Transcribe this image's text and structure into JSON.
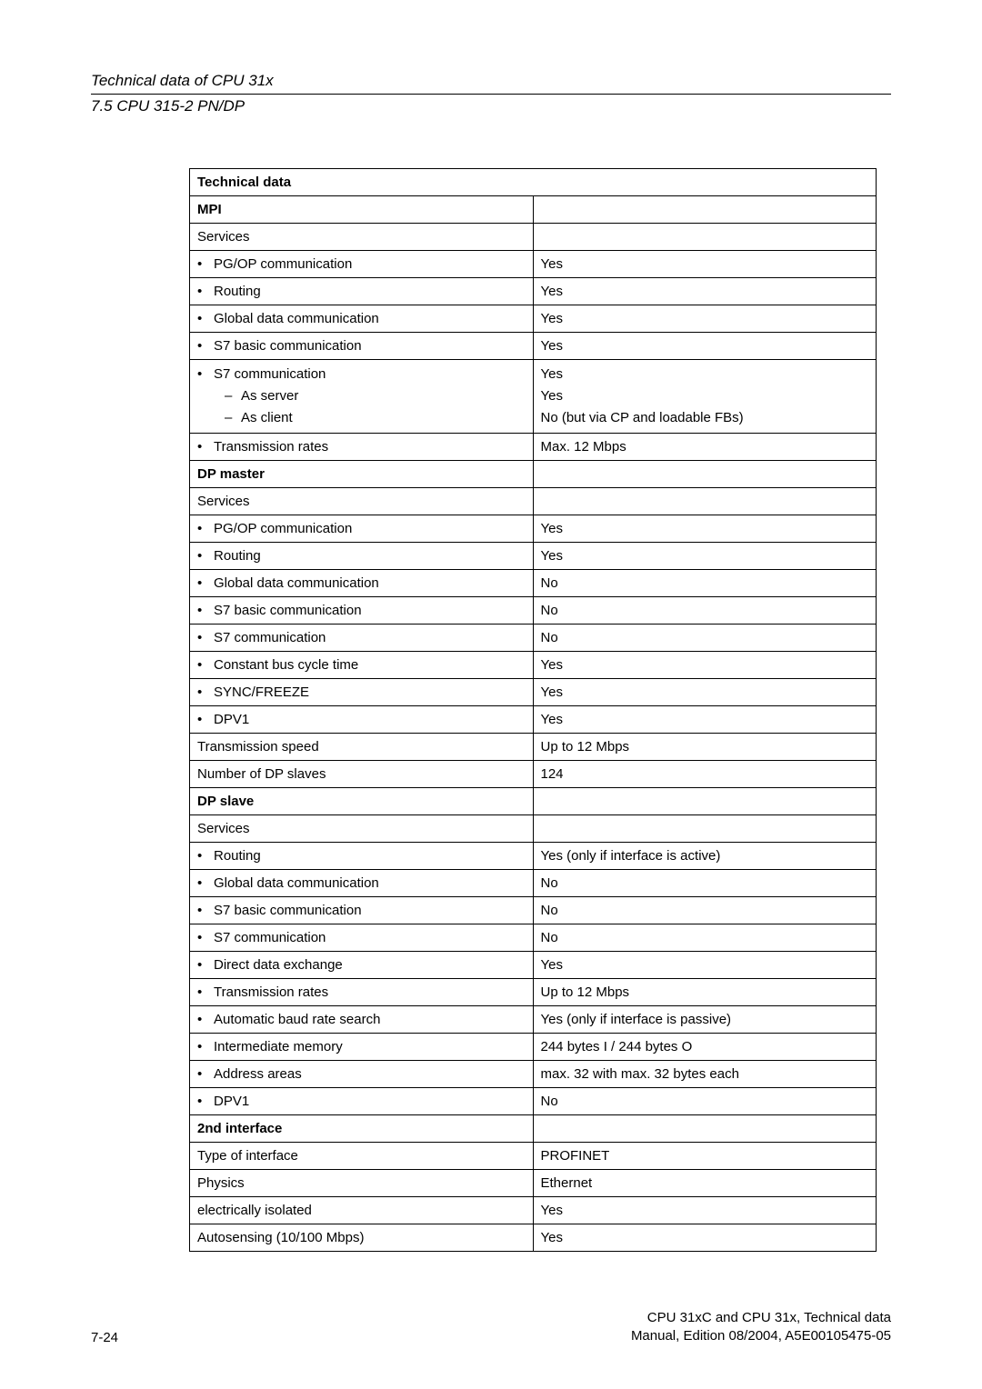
{
  "header": {
    "line1": "Technical data of CPU 31x",
    "line2": "7.5 CPU 315-2 PN/DP"
  },
  "table": {
    "title": "Technical data",
    "sections": {
      "mpi": {
        "label": "MPI"
      },
      "dp_master": {
        "label": "DP master"
      },
      "dp_slave": {
        "label": "DP slave"
      },
      "second_if": {
        "label": "2nd interface"
      }
    },
    "rows": {
      "mpi_services": {
        "l": "Services",
        "r": ""
      },
      "mpi_pgop": {
        "l": "PG/OP communication",
        "r": "Yes"
      },
      "mpi_routing": {
        "l": "Routing",
        "r": "Yes"
      },
      "mpi_gdc": {
        "l": "Global data communication",
        "r": "Yes"
      },
      "mpi_s7basic": {
        "l": "S7 basic communication",
        "r": "Yes"
      },
      "mpi_s7comm": {
        "l": "S7 communication",
        "r1": "Yes",
        "sub1l": "As server",
        "r2": "Yes",
        "sub2l": "As client",
        "r3": "No (but via CP and loadable FBs)"
      },
      "mpi_trans": {
        "l": "Transmission rates",
        "r": "Max. 12 Mbps"
      },
      "dpm_services": {
        "l": "Services",
        "r": ""
      },
      "dpm_pgop": {
        "l": "PG/OP communication",
        "r": "Yes"
      },
      "dpm_routing": {
        "l": "Routing",
        "r": "Yes"
      },
      "dpm_gdc": {
        "l": "Global data communication",
        "r": "No"
      },
      "dpm_s7basic": {
        "l": "S7 basic communication",
        "r": "No"
      },
      "dpm_s7comm": {
        "l": "S7 communication",
        "r": "No"
      },
      "dpm_const": {
        "l": "Constant bus cycle time",
        "r": "Yes"
      },
      "dpm_sync": {
        "l": "SYNC/FREEZE",
        "r": "Yes"
      },
      "dpm_dpv1": {
        "l": "DPV1",
        "r": "Yes"
      },
      "dpm_tspeed": {
        "l": "Transmission speed",
        "r": "Up to 12 Mbps"
      },
      "dpm_num": {
        "l": "Number of DP slaves",
        "r": "124"
      },
      "dps_services": {
        "l": "Services",
        "r": ""
      },
      "dps_routing": {
        "l": "Routing",
        "r": "Yes (only if interface is active)"
      },
      "dps_gdc": {
        "l": "Global data communication",
        "r": "No"
      },
      "dps_s7basic": {
        "l": "S7 basic communication",
        "r": "No"
      },
      "dps_s7comm": {
        "l": "S7 communication",
        "r": "No"
      },
      "dps_dde": {
        "l": "Direct data exchange",
        "r": "Yes"
      },
      "dps_trans": {
        "l": "Transmission rates",
        "r": "Up to 12 Mbps"
      },
      "dps_auto": {
        "l": "Automatic baud rate search",
        "r": "Yes (only if interface is passive)"
      },
      "dps_inter": {
        "l": "Intermediate memory",
        "r": "244 bytes I / 244 bytes O"
      },
      "dps_addr": {
        "l": "Address areas",
        "r": "max. 32 with max. 32 bytes each"
      },
      "dps_dpv1": {
        "l": "DPV1",
        "r": "No"
      },
      "if2_type": {
        "l": "Type of interface",
        "r": "PROFINET"
      },
      "if2_phys": {
        "l": "Physics",
        "r": "Ethernet"
      },
      "if2_elec": {
        "l": "electrically isolated",
        "r": "Yes"
      },
      "if2_auto": {
        "l": "Autosensing (10/100 Mbps)",
        "r": "Yes"
      }
    }
  },
  "footer": {
    "page": "7-24",
    "r1": "CPU 31xC and CPU 31x, Technical data",
    "r2": "Manual, Edition 08/2004, A5E00105475-05"
  },
  "colors": {
    "text": "#000000",
    "border": "#000000",
    "bg": "#ffffff"
  },
  "typography": {
    "header_fontsize": 17,
    "body_fontsize": 15,
    "footer_fontsize": 15,
    "font_family": "Arial"
  }
}
